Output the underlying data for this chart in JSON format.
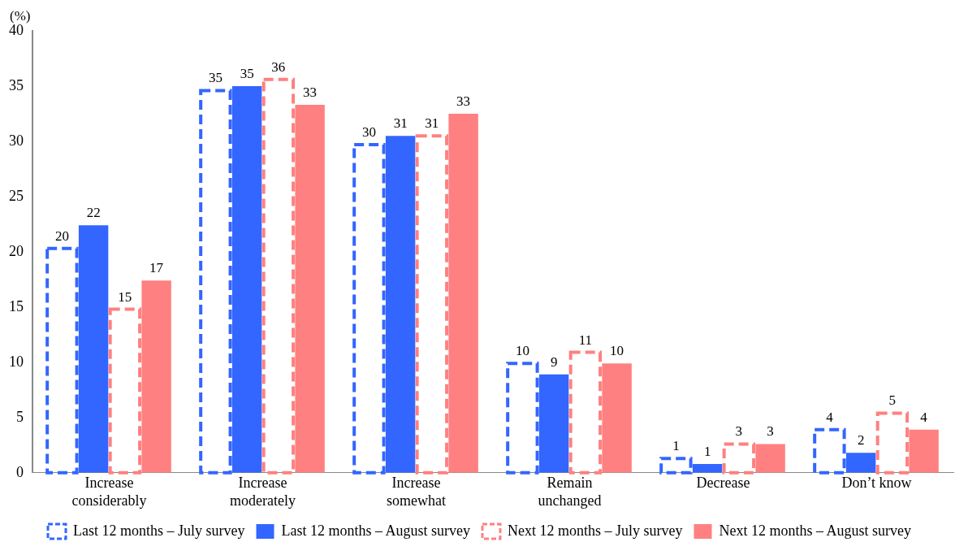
{
  "chart_data": {
    "type": "bar",
    "ylabel": "(%)",
    "categories": [
      "Increase considerably",
      "Increase moderately",
      "Increase somewhat",
      "Remain unchanged",
      "Decrease",
      "Don’t know"
    ],
    "series": [
      {
        "name": "Last 12 months – July survey",
        "color": "#3366ff",
        "line_style": "dashed",
        "values": [
          20.3,
          34.6,
          29.7,
          9.9,
          1.3,
          3.9
        ],
        "value_labels": [
          "20",
          "35",
          "30",
          "10",
          "1",
          "4"
        ]
      },
      {
        "name": "Last 12 months – August survey",
        "color": "#3366ff",
        "line_style": "solid",
        "values": [
          22.4,
          35.0,
          30.5,
          8.9,
          0.8,
          1.8
        ],
        "value_labels": [
          "22",
          "35",
          "31",
          "9",
          "1",
          "2"
        ]
      },
      {
        "name": "Next 12 months – July survey",
        "color": "#ff8080",
        "line_style": "dashed",
        "values": [
          14.8,
          35.6,
          30.5,
          10.9,
          2.6,
          5.4
        ],
        "value_labels": [
          "15",
          "36",
          "31",
          "11",
          "3",
          "5"
        ]
      },
      {
        "name": "Next 12 months – August survey",
        "color": "#ff8080",
        "line_style": "solid",
        "values": [
          17.4,
          33.3,
          32.5,
          9.9,
          2.6,
          3.9
        ],
        "value_labels": [
          "17",
          "33",
          "33",
          "10",
          "3",
          "4"
        ]
      }
    ],
    "ylim": [
      0,
      40
    ],
    "yticks": [
      0,
      5,
      10,
      15,
      20,
      25,
      30,
      35,
      40
    ],
    "grid": false,
    "legend": "bottom"
  }
}
